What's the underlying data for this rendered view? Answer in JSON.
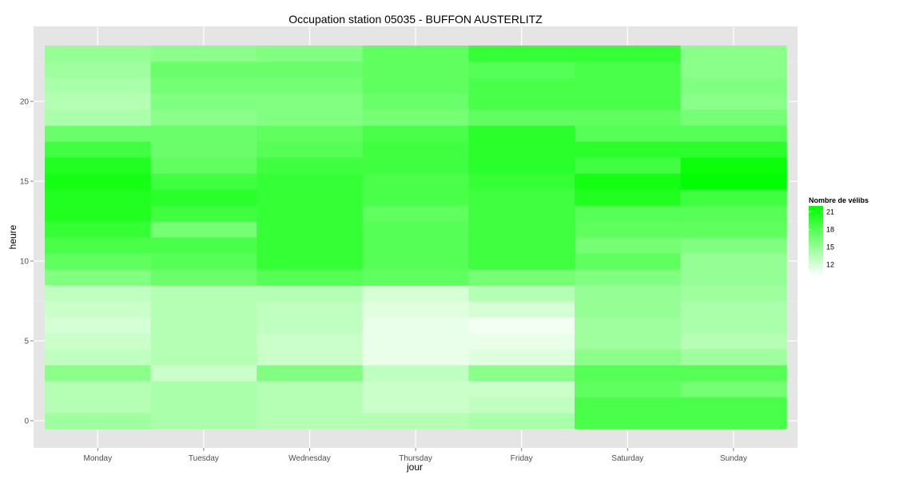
{
  "chart_data": {
    "type": "heatmap",
    "title": "Occupation station 05035 - BUFFON AUSTERLITZ",
    "xlabel": "jour",
    "ylabel": "heure",
    "categories": [
      "Monday",
      "Tuesday",
      "Wednesday",
      "Thursday",
      "Friday",
      "Saturday",
      "Sunday"
    ],
    "y_hours": [
      0,
      1,
      2,
      3,
      4,
      5,
      6,
      7,
      8,
      9,
      10,
      11,
      12,
      13,
      14,
      15,
      16,
      17,
      18,
      19,
      20,
      21,
      22,
      23
    ],
    "y_ticks": [
      0,
      5,
      10,
      15,
      20
    ],
    "y_range": [
      -0.5,
      23.5
    ],
    "values": [
      [
        14.5,
        14.0,
        13.5,
        13.5,
        14.0,
        18.5,
        18.5
      ],
      [
        13.5,
        14.0,
        13.5,
        12.5,
        13.0,
        18.5,
        18.5
      ],
      [
        13.5,
        14.0,
        13.5,
        12.5,
        12.5,
        17.5,
        16.5
      ],
      [
        15.5,
        12.5,
        16.0,
        13.0,
        15.5,
        18.0,
        18.0
      ],
      [
        13.0,
        13.5,
        12.5,
        11.0,
        11.5,
        15.5,
        14.5
      ],
      [
        12.5,
        13.5,
        12.5,
        11.0,
        11.0,
        14.5,
        13.5
      ],
      [
        12.0,
        13.5,
        13.0,
        11.0,
        10.5,
        14.5,
        14.0
      ],
      [
        12.5,
        13.5,
        13.0,
        11.5,
        12.0,
        15.0,
        14.0
      ],
      [
        13.0,
        13.5,
        13.5,
        12.0,
        13.5,
        15.0,
        14.5
      ],
      [
        16.0,
        17.0,
        18.0,
        17.5,
        16.5,
        16.0,
        15.0
      ],
      [
        17.5,
        18.0,
        19.5,
        18.0,
        19.0,
        17.5,
        15.0
      ],
      [
        18.5,
        18.5,
        19.5,
        18.0,
        19.0,
        16.5,
        16.0
      ],
      [
        19.5,
        16.5,
        19.5,
        18.0,
        19.0,
        17.5,
        17.5
      ],
      [
        20.5,
        19.0,
        19.5,
        17.5,
        19.0,
        18.0,
        18.0
      ],
      [
        20.5,
        20.0,
        19.5,
        18.5,
        19.0,
        20.5,
        19.0
      ],
      [
        21.0,
        19.0,
        19.5,
        18.5,
        19.5,
        21.0,
        22.0
      ],
      [
        20.5,
        17.5,
        19.0,
        19.0,
        20.0,
        19.0,
        21.5
      ],
      [
        19.0,
        17.0,
        18.0,
        19.0,
        20.0,
        20.0,
        20.0
      ],
      [
        17.0,
        17.0,
        17.5,
        18.5,
        20.0,
        18.0,
        18.0
      ],
      [
        14.0,
        15.5,
        16.0,
        16.5,
        17.5,
        17.5,
        16.5
      ],
      [
        13.5,
        16.0,
        16.0,
        17.0,
        18.5,
        18.5,
        15.5
      ],
      [
        14.0,
        16.5,
        16.5,
        17.5,
        18.5,
        18.5,
        16.0
      ],
      [
        14.5,
        17.0,
        17.0,
        17.5,
        18.0,
        18.5,
        15.5
      ],
      [
        15.0,
        15.5,
        16.0,
        17.5,
        19.5,
        19.5,
        15.5
      ]
    ],
    "legend": {
      "title": "Nombre de vélibs",
      "ticks": [
        21,
        18,
        15,
        12
      ],
      "range": [
        10,
        22
      ],
      "placement": "right",
      "color_low": "#ffffff",
      "color_high": "#00ff00"
    },
    "panel_background": "#e5e5e5",
    "grid": true
  }
}
